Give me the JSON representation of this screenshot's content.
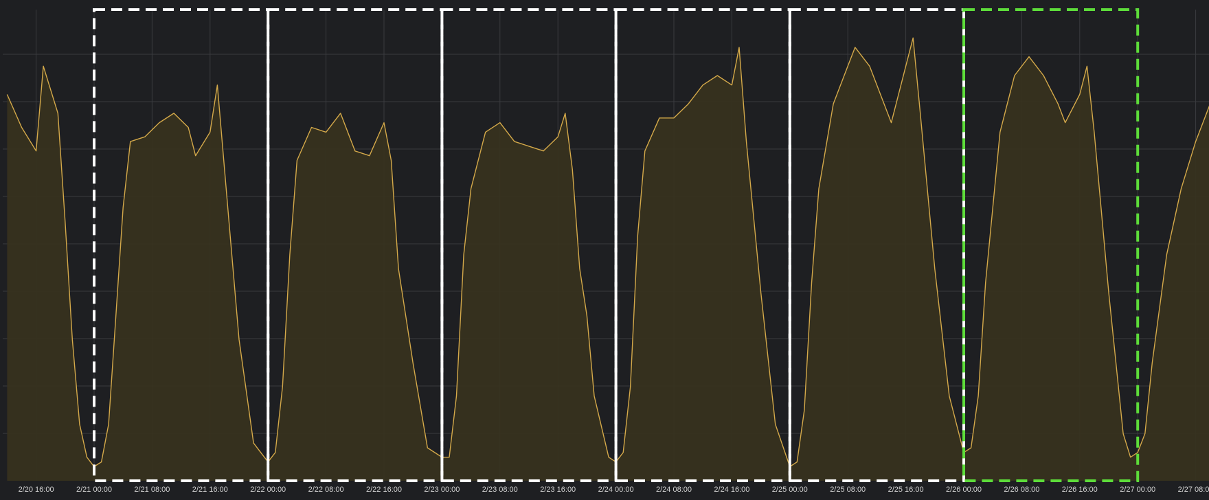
{
  "chart_data": {
    "type": "area",
    "title": "",
    "xlabel": "",
    "ylabel": "",
    "x_ticks": [
      "2/20 16:00",
      "2/21 00:00",
      "2/21 08:00",
      "2/21 16:00",
      "2/22 00:00",
      "2/22 08:00",
      "2/22 16:00",
      "2/23 00:00",
      "2/23 08:00",
      "2/23 16:00",
      "2/24 00:00",
      "2/24 08:00",
      "2/24 16:00",
      "2/25 00:00",
      "2/25 08:00",
      "2/25 16:00",
      "2/26 00:00",
      "2/26 08:00",
      "2/26 16:00",
      "2/27 00:00",
      "2/27 08:00"
    ],
    "x_range": [
      "2/20 12:00",
      "2/27 11:00"
    ],
    "y_range": [
      0,
      1
    ],
    "grid": true,
    "colors": {
      "background": "#1e1f22",
      "grid": "#3a3b3f",
      "line": "#d4a94a",
      "fill": "#37321f",
      "highlight_white": "#ffffff",
      "highlight_green": "#5ddc3a"
    },
    "series": [
      {
        "points": [
          [
            "2/20 12:00",
            0.82
          ],
          [
            "2/20 14:00",
            0.75
          ],
          [
            "2/20 16:00",
            0.7
          ],
          [
            "2/20 17:00",
            0.88
          ],
          [
            "2/20 19:00",
            0.78
          ],
          [
            "2/20 20:00",
            0.55
          ],
          [
            "2/20 21:00",
            0.3
          ],
          [
            "2/20 22:00",
            0.12
          ],
          [
            "2/20 23:00",
            0.05
          ],
          [
            "2/21 00:00",
            0.03
          ],
          [
            "2/21 01:00",
            0.04
          ],
          [
            "2/21 02:00",
            0.12
          ],
          [
            "2/21 03:00",
            0.35
          ],
          [
            "2/21 04:00",
            0.58
          ],
          [
            "2/21 05:00",
            0.72
          ],
          [
            "2/21 07:00",
            0.73
          ],
          [
            "2/21 09:00",
            0.76
          ],
          [
            "2/21 11:00",
            0.78
          ],
          [
            "2/21 13:00",
            0.75
          ],
          [
            "2/21 14:00",
            0.69
          ],
          [
            "2/21 16:00",
            0.74
          ],
          [
            "2/21 17:00",
            0.84
          ],
          [
            "2/21 18:00",
            0.66
          ],
          [
            "2/21 20:00",
            0.3
          ],
          [
            "2/21 22:00",
            0.08
          ],
          [
            "2/22 00:00",
            0.04
          ],
          [
            "2/22 01:00",
            0.06
          ],
          [
            "2/22 02:00",
            0.2
          ],
          [
            "2/22 03:00",
            0.48
          ],
          [
            "2/22 04:00",
            0.68
          ],
          [
            "2/22 06:00",
            0.75
          ],
          [
            "2/22 08:00",
            0.74
          ],
          [
            "2/22 10:00",
            0.78
          ],
          [
            "2/22 12:00",
            0.7
          ],
          [
            "2/22 14:00",
            0.69
          ],
          [
            "2/22 16:00",
            0.76
          ],
          [
            "2/22 17:00",
            0.68
          ],
          [
            "2/22 18:00",
            0.45
          ],
          [
            "2/22 20:00",
            0.25
          ],
          [
            "2/22 22:00",
            0.07
          ],
          [
            "2/23 00:00",
            0.05
          ],
          [
            "2/23 01:00",
            0.05
          ],
          [
            "2/23 02:00",
            0.18
          ],
          [
            "2/23 03:00",
            0.48
          ],
          [
            "2/23 04:00",
            0.62
          ],
          [
            "2/23 06:00",
            0.74
          ],
          [
            "2/23 08:00",
            0.76
          ],
          [
            "2/23 10:00",
            0.72
          ],
          [
            "2/23 12:00",
            0.71
          ],
          [
            "2/23 14:00",
            0.7
          ],
          [
            "2/23 16:00",
            0.73
          ],
          [
            "2/23 17:00",
            0.78
          ],
          [
            "2/23 18:00",
            0.66
          ],
          [
            "2/23 19:00",
            0.45
          ],
          [
            "2/23 20:00",
            0.35
          ],
          [
            "2/23 21:00",
            0.18
          ],
          [
            "2/23 23:00",
            0.05
          ],
          [
            "2/24 00:00",
            0.04
          ],
          [
            "2/24 01:00",
            0.06
          ],
          [
            "2/24 02:00",
            0.2
          ],
          [
            "2/24 03:00",
            0.52
          ],
          [
            "2/24 04:00",
            0.7
          ],
          [
            "2/24 06:00",
            0.77
          ],
          [
            "2/24 08:00",
            0.77
          ],
          [
            "2/24 10:00",
            0.8
          ],
          [
            "2/24 12:00",
            0.84
          ],
          [
            "2/24 14:00",
            0.86
          ],
          [
            "2/24 16:00",
            0.84
          ],
          [
            "2/24 17:00",
            0.92
          ],
          [
            "2/24 18:00",
            0.72
          ],
          [
            "2/24 20:00",
            0.4
          ],
          [
            "2/24 22:00",
            0.12
          ],
          [
            "2/25 00:00",
            0.03
          ],
          [
            "2/25 01:00",
            0.04
          ],
          [
            "2/25 02:00",
            0.15
          ],
          [
            "2/25 03:00",
            0.42
          ],
          [
            "2/25 04:00",
            0.62
          ],
          [
            "2/25 06:00",
            0.8
          ],
          [
            "2/25 08:00",
            0.88
          ],
          [
            "2/25 09:00",
            0.92
          ],
          [
            "2/25 11:00",
            0.88
          ],
          [
            "2/25 13:00",
            0.8
          ],
          [
            "2/25 14:00",
            0.76
          ],
          [
            "2/25 16:00",
            0.88
          ],
          [
            "2/25 17:00",
            0.94
          ],
          [
            "2/25 18:00",
            0.78
          ],
          [
            "2/25 20:00",
            0.45
          ],
          [
            "2/25 22:00",
            0.18
          ],
          [
            "2/26 00:00",
            0.06
          ],
          [
            "2/26 01:00",
            0.07
          ],
          [
            "2/26 02:00",
            0.18
          ],
          [
            "2/26 03:00",
            0.42
          ],
          [
            "2/26 05:00",
            0.74
          ],
          [
            "2/26 07:00",
            0.86
          ],
          [
            "2/26 09:00",
            0.9
          ],
          [
            "2/26 11:00",
            0.86
          ],
          [
            "2/26 13:00",
            0.8
          ],
          [
            "2/26 14:00",
            0.76
          ],
          [
            "2/26 16:00",
            0.82
          ],
          [
            "2/26 17:00",
            0.88
          ],
          [
            "2/26 18:00",
            0.74
          ],
          [
            "2/26 20:00",
            0.4
          ],
          [
            "2/26 22:00",
            0.1
          ],
          [
            "2/26 23:00",
            0.05
          ],
          [
            "2/27 00:00",
            0.06
          ],
          [
            "2/27 01:00",
            0.1
          ],
          [
            "2/27 02:00",
            0.25
          ],
          [
            "2/27 04:00",
            0.48
          ],
          [
            "2/27 06:00",
            0.62
          ],
          [
            "2/27 08:00",
            0.72
          ],
          [
            "2/27 10:00",
            0.8
          ],
          [
            "2/27 11:00",
            0.78
          ]
        ]
      }
    ],
    "highlight_boxes": [
      {
        "start": "2/21 00:00",
        "end": "2/22 00:00",
        "color": "highlight_white"
      },
      {
        "start": "2/22 00:00",
        "end": "2/23 00:00",
        "color": "highlight_white"
      },
      {
        "start": "2/23 00:00",
        "end": "2/24 00:00",
        "color": "highlight_white"
      },
      {
        "start": "2/24 00:00",
        "end": "2/25 00:00",
        "color": "highlight_white"
      },
      {
        "start": "2/25 00:00",
        "end": "2/26 00:00",
        "color": "highlight_white"
      },
      {
        "start": "2/26 00:00",
        "end": "2/27 00:00",
        "color": "highlight_green"
      }
    ]
  }
}
